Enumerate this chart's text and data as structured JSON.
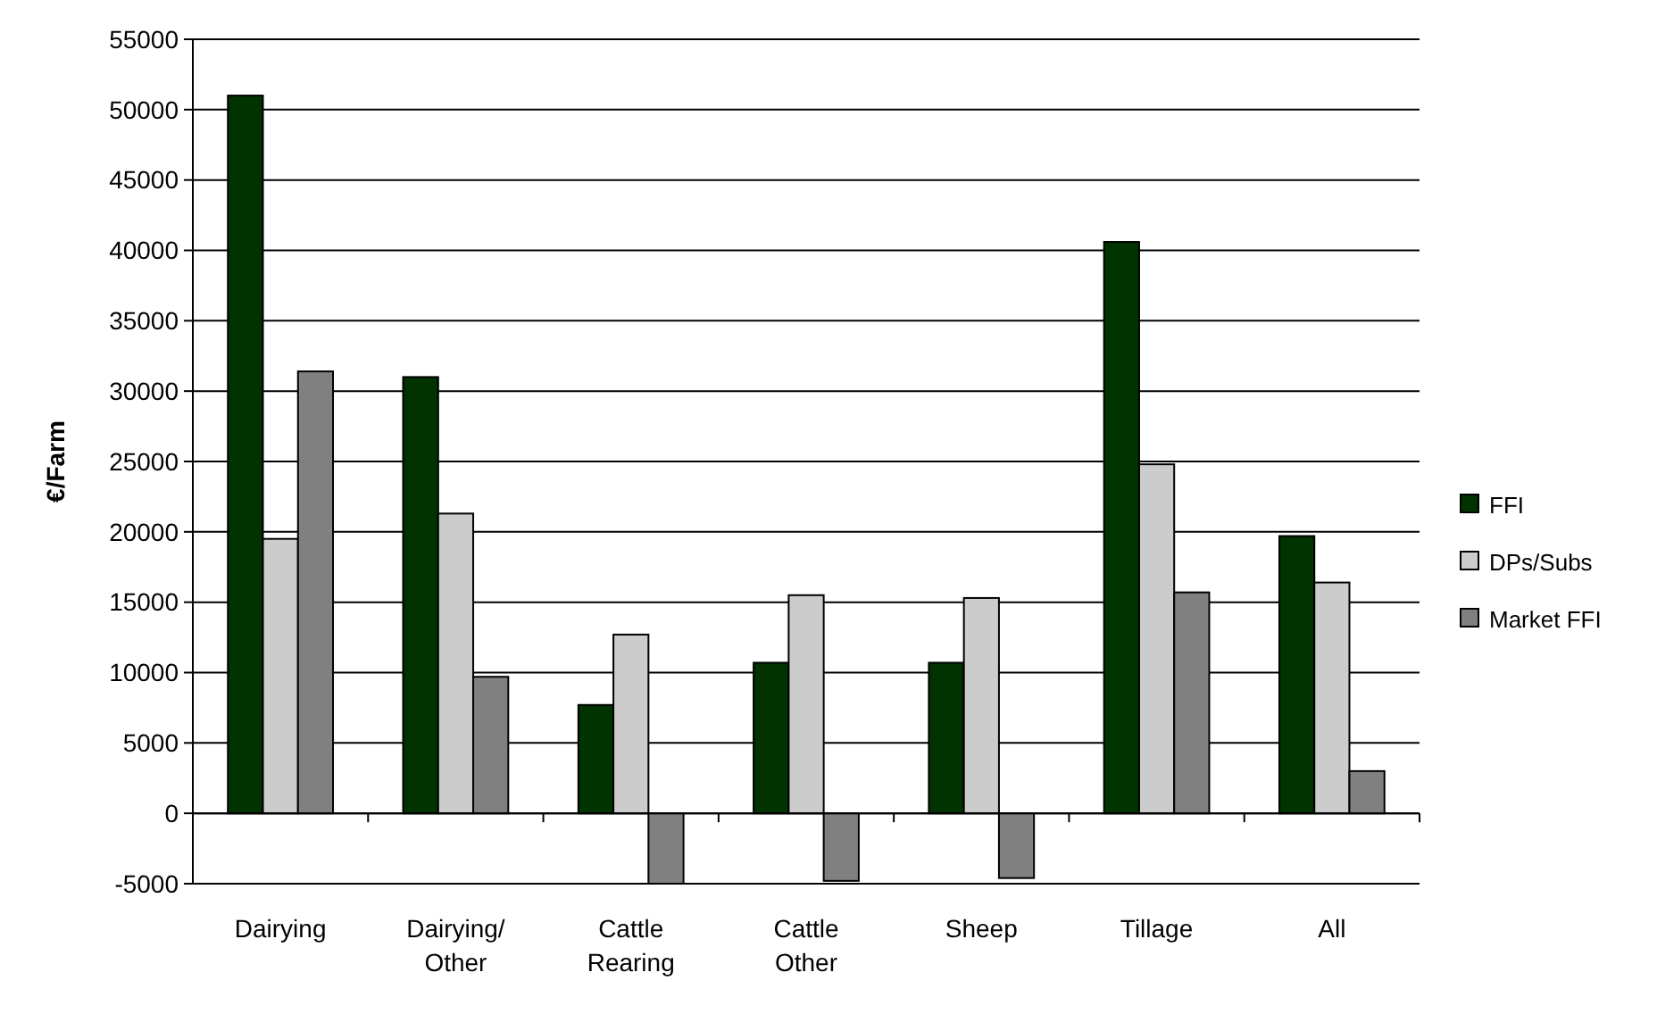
{
  "chart_data": {
    "type": "bar",
    "ylabel": "€/Farm",
    "categories": [
      "Dairying",
      "Dairying/Other",
      "Cattle Rearing",
      "Cattle Other",
      "Sheep",
      "Tillage",
      "All"
    ],
    "series": [
      {
        "name": "FFI",
        "color": "#003300",
        "values": [
          51000,
          31000,
          7700,
          10700,
          10700,
          40600,
          19700
        ]
      },
      {
        "name": "DPs/Subs",
        "color": "#cccccc",
        "values": [
          19500,
          21300,
          12700,
          15500,
          15300,
          24800,
          16400
        ]
      },
      {
        "name": "Market FFI",
        "color": "#808080",
        "values": [
          31400,
          9700,
          -5000,
          -4800,
          -4600,
          15700,
          3000
        ]
      }
    ],
    "ylim": [
      -5000,
      55000
    ],
    "yticks": [
      -5000,
      0,
      5000,
      10000,
      15000,
      20000,
      25000,
      30000,
      35000,
      40000,
      45000,
      50000,
      55000
    ],
    "grid": "y",
    "legend": "right"
  }
}
